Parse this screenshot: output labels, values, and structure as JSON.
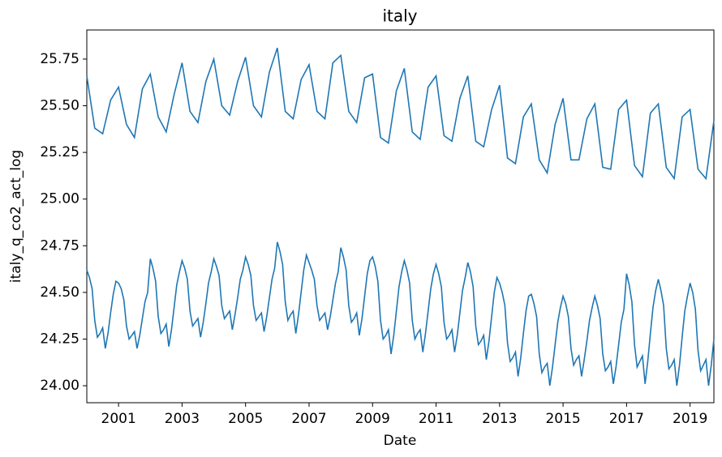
{
  "chart_data": {
    "type": "line",
    "title": "italy",
    "x_label": "Date",
    "y_label": "italy_q_co2_act_log",
    "xlim": [
      2000,
      2019.75
    ],
    "xticks": [
      2001,
      2003,
      2005,
      2007,
      2009,
      2011,
      2013,
      2015,
      2017,
      2019
    ],
    "ylim": [
      23.909,
      25.906
    ],
    "yticks": [
      {
        "value": 24,
        "label": "24.00"
      },
      {
        "value": 24.25,
        "label": "24.25"
      },
      {
        "value": 24.5,
        "label": "24.50"
      },
      {
        "value": 24.75,
        "label": "24.75"
      },
      {
        "value": 25,
        "label": "25.00"
      },
      {
        "value": 25.25,
        "label": "25.25"
      },
      {
        "value": 25.5,
        "label": "25.50"
      },
      {
        "value": 25.75,
        "label": "25.75"
      }
    ],
    "series": [
      {
        "color": "#1f77b4",
        "x": [
          2000,
          2000.25,
          2000.5,
          2000.75,
          2001,
          2001.25,
          2001.5,
          2001.75,
          2002,
          2002.25,
          2002.5,
          2002.75,
          2003,
          2003.25,
          2003.5,
          2003.75,
          2004,
          2004.25,
          2004.5,
          2004.75,
          2005,
          2005.25,
          2005.5,
          2005.75,
          2006,
          2006.25,
          2006.5,
          2006.75,
          2007,
          2007.25,
          2007.5,
          2007.75,
          2008,
          2008.25,
          2008.5,
          2008.75,
          2009,
          2009.25,
          2009.5,
          2009.75,
          2010,
          2010.25,
          2010.5,
          2010.75,
          2011,
          2011.25,
          2011.5,
          2011.75,
          2012,
          2012.25,
          2012.5,
          2012.75,
          2013,
          2013.25,
          2013.5,
          2013.75,
          2014,
          2014.25,
          2014.5,
          2014.75,
          2015,
          2015.25,
          2015.5,
          2015.75,
          2016,
          2016.25,
          2016.5,
          2016.75,
          2017,
          2017.25,
          2017.5,
          2017.75,
          2018,
          2018.25,
          2018.5,
          2018.75,
          2019,
          2019.25,
          2019.5,
          2019.75
        ],
        "values": [
          25.66,
          25.38,
          25.35,
          25.53,
          25.6,
          25.4,
          25.33,
          25.59,
          25.67,
          25.44,
          25.36,
          25.56,
          25.73,
          25.47,
          25.41,
          25.63,
          25.75,
          25.5,
          25.45,
          25.63,
          25.76,
          25.5,
          25.44,
          25.68,
          25.81,
          25.47,
          25.43,
          25.64,
          25.72,
          25.47,
          25.43,
          25.73,
          25.77,
          25.47,
          25.41,
          25.65,
          25.67,
          25.33,
          25.3,
          25.58,
          25.7,
          25.36,
          25.32,
          25.6,
          25.66,
          25.34,
          25.31,
          25.54,
          25.66,
          25.31,
          25.28,
          25.48,
          25.61,
          25.22,
          25.19,
          25.44,
          25.51,
          25.21,
          25.14,
          25.4,
          25.54,
          25.21,
          25.21,
          25.43,
          25.51,
          25.17,
          25.16,
          25.48,
          25.53,
          25.18,
          25.12,
          25.46,
          25.51,
          25.17,
          25.11,
          25.44,
          25.48,
          25.16,
          25.11,
          25.42
        ]
      },
      {
        "color": "#1f77b4",
        "x": [
          2000,
          2000.083,
          2000.167,
          2000.25,
          2000.333,
          2000.417,
          2000.5,
          2000.583,
          2000.667,
          2000.75,
          2000.833,
          2000.917,
          2001,
          2001.083,
          2001.167,
          2001.25,
          2001.333,
          2001.417,
          2001.5,
          2001.583,
          2001.667,
          2001.75,
          2001.833,
          2001.917,
          2002,
          2002.083,
          2002.167,
          2002.25,
          2002.333,
          2002.417,
          2002.5,
          2002.583,
          2002.667,
          2002.75,
          2002.833,
          2002.917,
          2003,
          2003.083,
          2003.167,
          2003.25,
          2003.333,
          2003.417,
          2003.5,
          2003.583,
          2003.667,
          2003.75,
          2003.833,
          2003.917,
          2004,
          2004.083,
          2004.167,
          2004.25,
          2004.333,
          2004.417,
          2004.5,
          2004.583,
          2004.667,
          2004.75,
          2004.833,
          2004.917,
          2005,
          2005.083,
          2005.167,
          2005.25,
          2005.333,
          2005.417,
          2005.5,
          2005.583,
          2005.667,
          2005.75,
          2005.833,
          2005.917,
          2006,
          2006.083,
          2006.167,
          2006.25,
          2006.333,
          2006.417,
          2006.5,
          2006.583,
          2006.667,
          2006.75,
          2006.833,
          2006.917,
          2007,
          2007.083,
          2007.167,
          2007.25,
          2007.333,
          2007.417,
          2007.5,
          2007.583,
          2007.667,
          2007.75,
          2007.833,
          2007.917,
          2008,
          2008.083,
          2008.167,
          2008.25,
          2008.333,
          2008.417,
          2008.5,
          2008.583,
          2008.667,
          2008.75,
          2008.833,
          2008.917,
          2009,
          2009.083,
          2009.167,
          2009.25,
          2009.333,
          2009.417,
          2009.5,
          2009.583,
          2009.667,
          2009.75,
          2009.833,
          2009.917,
          2010,
          2010.083,
          2010.167,
          2010.25,
          2010.333,
          2010.417,
          2010.5,
          2010.583,
          2010.667,
          2010.75,
          2010.833,
          2010.917,
          2011,
          2011.083,
          2011.167,
          2011.25,
          2011.333,
          2011.417,
          2011.5,
          2011.583,
          2011.667,
          2011.75,
          2011.833,
          2011.917,
          2012,
          2012.083,
          2012.167,
          2012.25,
          2012.333,
          2012.417,
          2012.5,
          2012.583,
          2012.667,
          2012.75,
          2012.833,
          2012.917,
          2013,
          2013.083,
          2013.167,
          2013.25,
          2013.333,
          2013.417,
          2013.5,
          2013.583,
          2013.667,
          2013.75,
          2013.833,
          2013.917,
          2014,
          2014.083,
          2014.167,
          2014.25,
          2014.333,
          2014.417,
          2014.5,
          2014.583,
          2014.667,
          2014.75,
          2014.833,
          2014.917,
          2015,
          2015.083,
          2015.167,
          2015.25,
          2015.333,
          2015.417,
          2015.5,
          2015.583,
          2015.667,
          2015.75,
          2015.833,
          2015.917,
          2016,
          2016.083,
          2016.167,
          2016.25,
          2016.333,
          2016.417,
          2016.5,
          2016.583,
          2016.667,
          2016.75,
          2016.833,
          2016.917,
          2017,
          2017.083,
          2017.167,
          2017.25,
          2017.333,
          2017.417,
          2017.5,
          2017.583,
          2017.667,
          2017.75,
          2017.833,
          2017.917,
          2018,
          2018.083,
          2018.167,
          2018.25,
          2018.333,
          2018.417,
          2018.5,
          2018.583,
          2018.667,
          2018.75,
          2018.833,
          2018.917,
          2019,
          2019.083,
          2019.167,
          2019.25,
          2019.333,
          2019.417,
          2019.5,
          2019.583,
          2019.667,
          2019.75
        ],
        "values": [
          24.62,
          24.58,
          24.52,
          24.35,
          24.26,
          24.28,
          24.31,
          24.2,
          24.28,
          24.39,
          24.49,
          24.56,
          24.55,
          24.52,
          24.46,
          24.32,
          24.25,
          24.27,
          24.29,
          24.2,
          24.27,
          24.36,
          24.45,
          24.5,
          24.68,
          24.63,
          24.56,
          24.37,
          24.28,
          24.3,
          24.33,
          24.21,
          24.3,
          24.42,
          24.54,
          24.61,
          24.67,
          24.63,
          24.57,
          24.4,
          24.32,
          24.34,
          24.36,
          24.26,
          24.34,
          24.44,
          24.55,
          24.61,
          24.68,
          24.64,
          24.59,
          24.43,
          24.36,
          24.38,
          24.4,
          24.3,
          24.38,
          24.47,
          24.57,
          24.62,
          24.69,
          24.65,
          24.59,
          24.43,
          24.35,
          24.37,
          24.39,
          24.29,
          24.37,
          24.47,
          24.57,
          24.63,
          24.77,
          24.72,
          24.65,
          24.45,
          24.35,
          24.38,
          24.4,
          24.28,
          24.38,
          24.5,
          24.62,
          24.7,
          24.66,
          24.62,
          24.57,
          24.43,
          24.35,
          24.37,
          24.39,
          24.3,
          24.37,
          24.46,
          24.55,
          24.61,
          24.74,
          24.69,
          24.62,
          24.43,
          24.34,
          24.36,
          24.39,
          24.27,
          24.36,
          24.48,
          24.6,
          24.67,
          24.69,
          24.64,
          24.56,
          24.35,
          24.25,
          24.27,
          24.3,
          24.17,
          24.27,
          24.4,
          24.53,
          24.61,
          24.67,
          24.62,
          24.55,
          24.35,
          24.25,
          24.28,
          24.3,
          24.18,
          24.28,
          24.4,
          24.52,
          24.6,
          24.65,
          24.6,
          24.53,
          24.34,
          24.25,
          24.27,
          24.3,
          24.18,
          24.27,
          24.39,
          24.51,
          24.58,
          24.66,
          24.61,
          24.53,
          24.32,
          24.22,
          24.24,
          24.27,
          24.14,
          24.24,
          24.37,
          24.5,
          24.58,
          24.55,
          24.5,
          24.43,
          24.23,
          24.13,
          24.15,
          24.18,
          24.05,
          24.15,
          24.28,
          24.4,
          24.48,
          24.49,
          24.44,
          24.37,
          24.17,
          24.07,
          24.1,
          24.12,
          24,
          24.1,
          24.22,
          24.34,
          24.42,
          24.48,
          24.44,
          24.37,
          24.2,
          24.11,
          24.14,
          24.16,
          24.05,
          24.14,
          24.24,
          24.35,
          24.42,
          24.48,
          24.43,
          24.36,
          24.17,
          24.08,
          24.1,
          24.13,
          24.01,
          24.1,
          24.22,
          24.34,
          24.41,
          24.6,
          24.54,
          24.45,
          24.22,
          24.1,
          24.13,
          24.16,
          24.01,
          24.13,
          24.28,
          24.42,
          24.51,
          24.57,
          24.51,
          24.43,
          24.2,
          24.09,
          24.11,
          24.14,
          24,
          24.11,
          24.26,
          24.4,
          24.48,
          24.55,
          24.5,
          24.41,
          24.19,
          24.08,
          24.11,
          24.14,
          24,
          24.11,
          24.25
        ]
      }
    ]
  }
}
